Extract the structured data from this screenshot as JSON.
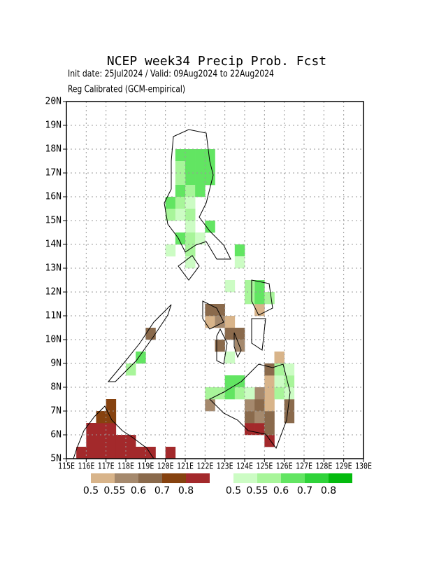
{
  "map": {
    "title": "NCEP week34 Precip Prob. Fcst",
    "subtitle": "Init date: 25Jul2024 / Valid: 09Aug2024 to 22Aug2024",
    "note": "Reg Calibrated (GCM-empirical)",
    "xlim": [
      115,
      130
    ],
    "ylim": [
      5,
      20
    ],
    "xticks": [
      {
        "value": 115,
        "label": "115E"
      },
      {
        "value": 116,
        "label": "116E"
      },
      {
        "value": 117,
        "label": "117E"
      },
      {
        "value": 118,
        "label": "118E"
      },
      {
        "value": 119,
        "label": "119E"
      },
      {
        "value": 120,
        "label": "120E"
      },
      {
        "value": 121,
        "label": "121E"
      },
      {
        "value": 122,
        "label": "122E"
      },
      {
        "value": 123,
        "label": "123E"
      },
      {
        "value": 124,
        "label": "124E"
      },
      {
        "value": 125,
        "label": "125E"
      },
      {
        "value": 126,
        "label": "126E"
      },
      {
        "value": 127,
        "label": "127E"
      },
      {
        "value": 128,
        "label": "128E"
      },
      {
        "value": 129,
        "label": "129E"
      },
      {
        "value": 130,
        "label": "130E"
      }
    ],
    "yticks": [
      {
        "value": 5,
        "label": "5N"
      },
      {
        "value": 6,
        "label": "6N"
      },
      {
        "value": 7,
        "label": "7N"
      },
      {
        "value": 8,
        "label": "8N"
      },
      {
        "value": 9,
        "label": "9N"
      },
      {
        "value": 10,
        "label": "10N"
      },
      {
        "value": 11,
        "label": "11N"
      },
      {
        "value": 12,
        "label": "12N"
      },
      {
        "value": 13,
        "label": "13N"
      },
      {
        "value": 14,
        "label": "14N"
      },
      {
        "value": 15,
        "label": "15N"
      },
      {
        "value": 16,
        "label": "16N"
      },
      {
        "value": 17,
        "label": "17N"
      },
      {
        "value": 18,
        "label": "18N"
      },
      {
        "value": 19,
        "label": "19N"
      },
      {
        "value": 20,
        "label": "20N"
      }
    ],
    "grid": true,
    "colorbars": [
      {
        "levels": [
          0.5,
          0.55,
          0.6,
          0.7,
          0.8
        ],
        "colors": [
          "#d8b48a",
          "#a5896d",
          "#8a6a4c",
          "#86420f",
          "#a3292b"
        ],
        "cells": [
          [
            115.5,
            5,
            0.8
          ],
          [
            116,
            5,
            0.8
          ],
          [
            116.5,
            5,
            0.8
          ],
          [
            117,
            5,
            0.8
          ],
          [
            117.5,
            5,
            0.8
          ],
          [
            118,
            5,
            0.8
          ],
          [
            118.5,
            5,
            0.8
          ],
          [
            119,
            5,
            0.8
          ],
          [
            120,
            5,
            0.8
          ],
          [
            116,
            5.5,
            0.8
          ],
          [
            116.5,
            5.5,
            0.8
          ],
          [
            117,
            5.5,
            0.8
          ],
          [
            117.5,
            5.5,
            0.8
          ],
          [
            118,
            5.5,
            0.8
          ],
          [
            116,
            6,
            0.8
          ],
          [
            116.5,
            6,
            0.8
          ],
          [
            117,
            6,
            0.8
          ],
          [
            116.5,
            6.5,
            0.7
          ],
          [
            117,
            6.5,
            0.7
          ],
          [
            117,
            7,
            0.7
          ],
          [
            124,
            6,
            0.8
          ],
          [
            124.5,
            6,
            0.8
          ],
          [
            125,
            5.5,
            0.8
          ],
          [
            125,
            6,
            0.6
          ],
          [
            124,
            6.5,
            0.6
          ],
          [
            124.5,
            6.5,
            0.55
          ],
          [
            125,
            6.5,
            0.6
          ],
          [
            124,
            7,
            0.55
          ],
          [
            124.5,
            7,
            0.6
          ],
          [
            125,
            7,
            0.5
          ],
          [
            125,
            7.5,
            0.5
          ],
          [
            124.5,
            7.5,
            0.55
          ],
          [
            126,
            6.5,
            0.6
          ],
          [
            126,
            7,
            0.6
          ],
          [
            122,
            7,
            0.55
          ],
          [
            125,
            8,
            0.5
          ],
          [
            125,
            8.5,
            0.6
          ],
          [
            125.5,
            9,
            0.5
          ],
          [
            122,
            10.5,
            0.5
          ],
          [
            122,
            11,
            0.6
          ],
          [
            122.5,
            11,
            0.6
          ],
          [
            122.5,
            10.5,
            0.55
          ],
          [
            123,
            10.5,
            0.5
          ],
          [
            123,
            10,
            0.6
          ],
          [
            123.5,
            10,
            0.6
          ],
          [
            122.5,
            9.5,
            0.6
          ],
          [
            123.5,
            9.5,
            0.55
          ],
          [
            119,
            10,
            0.6
          ],
          [
            124.5,
            11,
            0.5
          ]
        ]
      },
      {
        "levels": [
          0.5,
          0.55,
          0.6,
          0.7,
          0.8
        ],
        "colors": [
          "#ccfcc4",
          "#a8f59a",
          "#62e562",
          "#2fd33a",
          "#04bb0e"
        ],
        "cells": [
          [
            120.5,
            17.5,
            0.6
          ],
          [
            121,
            17.5,
            0.6
          ],
          [
            121.5,
            17.5,
            0.6
          ],
          [
            122,
            17.5,
            0.6
          ],
          [
            120.5,
            17,
            0.55
          ],
          [
            121,
            17,
            0.6
          ],
          [
            121.5,
            17,
            0.6
          ],
          [
            122,
            17,
            0.6
          ],
          [
            121,
            16.5,
            0.6
          ],
          [
            121.5,
            16.5,
            0.6
          ],
          [
            122,
            16.5,
            0.6
          ],
          [
            120.5,
            16.5,
            0.55
          ],
          [
            120.5,
            16,
            0.6
          ],
          [
            121,
            16,
            0.55
          ],
          [
            121.5,
            16,
            0.6
          ],
          [
            120,
            15.5,
            0.6
          ],
          [
            120.5,
            15.5,
            0.55
          ],
          [
            121,
            15.5,
            0.5
          ],
          [
            120,
            15,
            0.55
          ],
          [
            120.5,
            15,
            0.5
          ],
          [
            121,
            15,
            0.55
          ],
          [
            121,
            14.5,
            0.5
          ],
          [
            122,
            14.5,
            0.6
          ],
          [
            120.5,
            14,
            0.6
          ],
          [
            121,
            14,
            0.55
          ],
          [
            121.5,
            14,
            0.5
          ],
          [
            120,
            13.5,
            0.5
          ],
          [
            121,
            13.5,
            0.55
          ],
          [
            121,
            13,
            0.5
          ],
          [
            123.5,
            13.5,
            0.6
          ],
          [
            123.5,
            13,
            0.5
          ],
          [
            124.5,
            12,
            0.6
          ],
          [
            124,
            11.5,
            0.55
          ],
          [
            124.5,
            11.5,
            0.6
          ],
          [
            125,
            11.5,
            0.55
          ],
          [
            124,
            12,
            0.55
          ],
          [
            123,
            12,
            0.5
          ],
          [
            118.5,
            9,
            0.6
          ],
          [
            118,
            8.5,
            0.55
          ],
          [
            123,
            9,
            0.5
          ],
          [
            123,
            8,
            0.6
          ],
          [
            123.5,
            8,
            0.6
          ],
          [
            122.5,
            7.5,
            0.55
          ],
          [
            123,
            7.5,
            0.6
          ],
          [
            123.5,
            7.5,
            0.55
          ],
          [
            124,
            7.5,
            0.5
          ],
          [
            122,
            7.5,
            0.55
          ],
          [
            125.5,
            8,
            0.5
          ],
          [
            125.5,
            7.5,
            0.55
          ],
          [
            126,
            8,
            0.55
          ],
          [
            126,
            7.5,
            0.5
          ],
          [
            126,
            8.5,
            0.5
          ],
          [
            125.5,
            8.5,
            0.55
          ]
        ]
      }
    ]
  }
}
